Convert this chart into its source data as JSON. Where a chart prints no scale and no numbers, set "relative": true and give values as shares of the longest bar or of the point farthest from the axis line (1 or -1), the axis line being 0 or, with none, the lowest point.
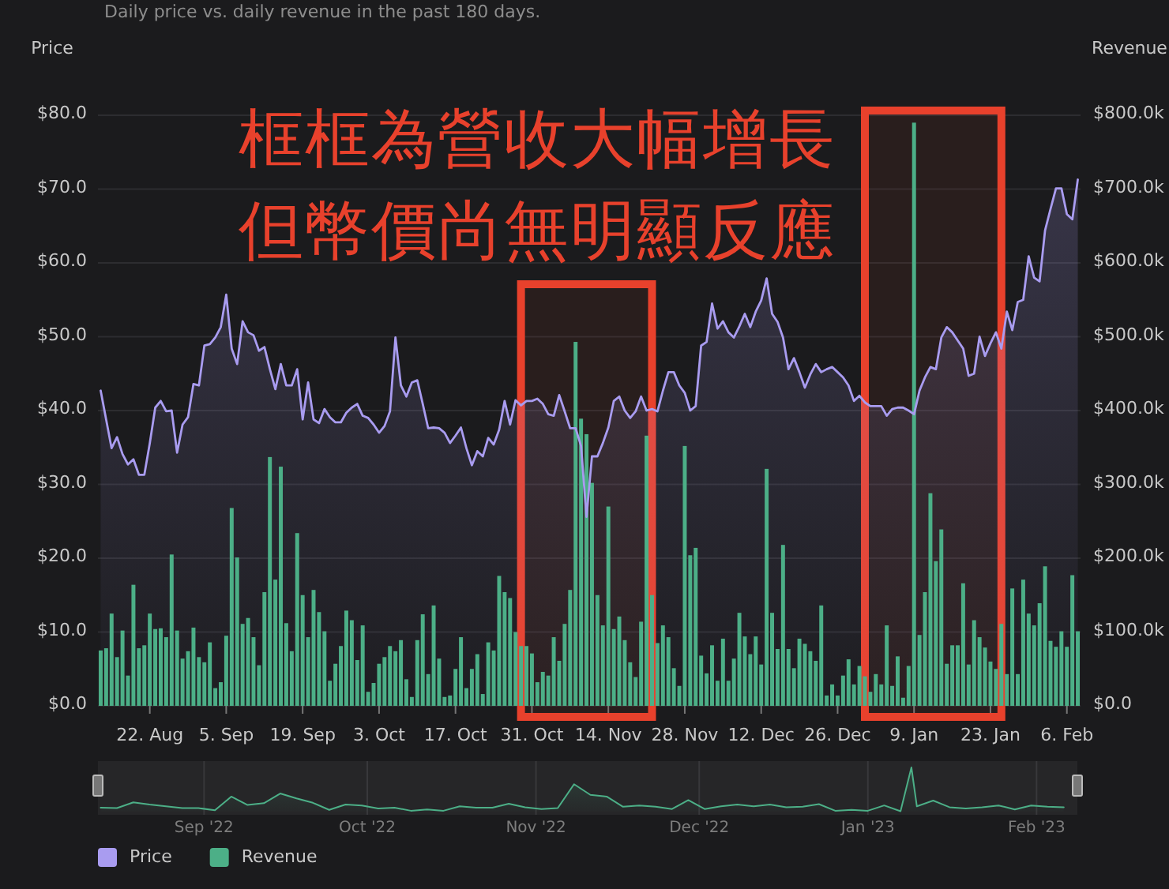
{
  "chart_data": [
    {
      "type": "bar",
      "title": "Daily price vs. daily revenue in the past 180 days.",
      "ylabel": "Price",
      "y2label": "Revenue",
      "x": [
        "2022-08-13",
        "2022-08-14",
        "2022-08-15",
        "2022-08-16",
        "2022-08-17",
        "2022-08-18",
        "2022-08-19",
        "2022-08-20",
        "2022-08-21",
        "2022-08-22",
        "2022-08-23",
        "2022-08-24",
        "2022-08-25",
        "2022-08-26",
        "2022-08-27",
        "2022-08-28",
        "2022-08-29",
        "2022-08-30",
        "2022-08-31",
        "2022-09-01",
        "2022-09-02",
        "2022-09-03",
        "2022-09-04",
        "2022-09-05",
        "2022-09-06",
        "2022-09-07",
        "2022-09-08",
        "2022-09-09",
        "2022-09-10",
        "2022-09-11",
        "2022-09-12",
        "2022-09-13",
        "2022-09-14",
        "2022-09-15",
        "2022-09-16",
        "2022-09-17",
        "2022-09-18",
        "2022-09-19",
        "2022-09-20",
        "2022-09-21",
        "2022-09-22",
        "2022-09-23",
        "2022-09-24",
        "2022-09-25",
        "2022-09-26",
        "2022-09-27",
        "2022-09-28",
        "2022-09-29",
        "2022-09-30",
        "2022-10-01",
        "2022-10-02",
        "2022-10-03",
        "2022-10-04",
        "2022-10-05",
        "2022-10-06",
        "2022-10-07",
        "2022-10-08",
        "2022-10-09",
        "2022-10-10",
        "2022-10-11",
        "2022-10-12",
        "2022-10-13",
        "2022-10-14",
        "2022-10-15",
        "2022-10-16",
        "2022-10-17",
        "2022-10-18",
        "2022-10-19",
        "2022-10-20",
        "2022-10-21",
        "2022-10-22",
        "2022-10-23",
        "2022-10-24",
        "2022-10-25",
        "2022-10-26",
        "2022-10-27",
        "2022-10-28",
        "2022-10-29",
        "2022-10-30",
        "2022-10-31",
        "2022-11-01",
        "2022-11-02",
        "2022-11-03",
        "2022-11-04",
        "2022-11-05",
        "2022-11-06",
        "2022-11-07",
        "2022-11-08",
        "2022-11-09",
        "2022-11-10",
        "2022-11-11",
        "2022-11-12",
        "2022-11-13",
        "2022-11-14",
        "2022-11-15",
        "2022-11-16",
        "2022-11-17",
        "2022-11-18",
        "2022-11-19",
        "2022-11-20",
        "2022-11-21",
        "2022-11-22",
        "2022-11-23",
        "2022-11-24",
        "2022-11-25",
        "2022-11-26",
        "2022-11-27",
        "2022-11-28",
        "2022-11-29",
        "2022-11-30",
        "2022-12-01",
        "2022-12-02",
        "2022-12-03",
        "2022-12-04",
        "2022-12-05",
        "2022-12-06",
        "2022-12-07",
        "2022-12-08",
        "2022-12-09",
        "2022-12-10",
        "2022-12-11",
        "2022-12-12",
        "2022-12-13",
        "2022-12-14",
        "2022-12-15",
        "2022-12-16",
        "2022-12-17",
        "2022-12-18",
        "2022-12-19",
        "2022-12-20",
        "2022-12-21",
        "2022-12-22",
        "2022-12-23",
        "2022-12-24",
        "2022-12-25",
        "2022-12-26",
        "2022-12-27",
        "2022-12-28",
        "2022-12-29",
        "2022-12-30",
        "2022-12-31",
        "2023-01-01",
        "2023-01-02",
        "2023-01-03",
        "2023-01-04",
        "2023-01-05",
        "2023-01-06",
        "2023-01-07",
        "2023-01-08",
        "2023-01-09",
        "2023-01-10",
        "2023-01-11",
        "2023-01-12",
        "2023-01-13",
        "2023-01-14",
        "2023-01-15",
        "2023-01-16",
        "2023-01-17",
        "2023-01-18",
        "2023-01-19",
        "2023-01-20",
        "2023-01-21",
        "2023-01-22",
        "2023-01-23",
        "2023-01-24",
        "2023-01-25",
        "2023-01-26",
        "2023-01-27",
        "2023-01-28",
        "2023-01-29",
        "2023-01-30",
        "2023-01-31",
        "2023-02-01",
        "2023-02-02",
        "2023-02-03",
        "2023-02-04",
        "2023-02-05",
        "2023-02-06",
        "2023-02-07",
        "2023-02-08"
      ],
      "series": [
        {
          "name": "Price",
          "type": "area",
          "axis": "y",
          "color": "#a99cf0",
          "values": [
            42.7,
            38.8,
            34.9,
            36.4,
            34.1,
            32.7,
            33.4,
            31.3,
            31.3,
            35.6,
            40.4,
            41.3,
            39.9,
            40.0,
            34.3,
            38.1,
            39.1,
            43.6,
            43.4,
            48.8,
            49.0,
            49.9,
            51.3,
            55.7,
            48.4,
            46.3,
            52.1,
            50.6,
            50.2,
            48.1,
            48.6,
            45.6,
            42.9,
            46.3,
            43.4,
            43.4,
            45.6,
            38.8,
            43.8,
            38.8,
            38.3,
            40.2,
            39.1,
            38.4,
            38.4,
            39.7,
            40.4,
            40.9,
            39.3,
            39.0,
            38.1,
            37.0,
            37.9,
            39.9,
            49.9,
            43.4,
            41.9,
            43.8,
            44.1,
            40.9,
            37.6,
            37.7,
            37.6,
            37.0,
            35.6,
            36.6,
            37.7,
            34.9,
            32.6,
            34.5,
            33.8,
            36.3,
            35.4,
            37.4,
            41.3,
            38.1,
            41.4,
            40.7,
            41.3,
            41.3,
            41.6,
            40.9,
            39.5,
            39.3,
            42.1,
            39.9,
            37.6,
            37.6,
            35.2,
            25.6,
            33.8,
            33.8,
            35.6,
            37.7,
            41.3,
            41.9,
            40.0,
            39.0,
            39.9,
            41.9,
            40.0,
            40.2,
            39.9,
            42.7,
            45.2,
            45.2,
            43.4,
            42.4,
            40.0,
            40.6,
            48.8,
            49.3,
            54.5,
            51.1,
            52.1,
            50.6,
            49.9,
            51.4,
            53.1,
            51.3,
            53.4,
            54.9,
            57.9,
            53.1,
            52.0,
            49.9,
            45.6,
            47.1,
            45.2,
            43.1,
            44.9,
            46.3,
            45.2,
            45.6,
            45.9,
            45.2,
            44.5,
            43.4,
            41.3,
            42.0,
            41.1,
            40.6,
            40.6,
            40.6,
            39.3,
            40.2,
            40.4,
            40.4,
            40.0,
            39.5,
            42.7,
            44.5,
            45.9,
            45.6,
            49.9,
            51.3,
            50.6,
            49.5,
            48.4,
            44.7,
            45.0,
            50.0,
            47.4,
            49.1,
            50.6,
            48.4,
            53.4,
            50.9,
            54.7,
            55.0,
            60.9,
            58.0,
            57.5,
            64.4,
            67.3,
            70.1,
            70.1,
            66.6,
            65.9,
            71.3
          ]
        },
        {
          "name": "Revenue",
          "type": "bar",
          "axis": "y2",
          "color": "#4caf87",
          "values": [
            75000,
            78000,
            125000,
            66000,
            102000,
            41000,
            164000,
            78000,
            82000,
            125000,
            104000,
            105000,
            93000,
            205000,
            102000,
            64000,
            74000,
            106000,
            66000,
            59000,
            86000,
            24000,
            32000,
            95000,
            268000,
            201000,
            111000,
            119000,
            93000,
            55000,
            154000,
            337000,
            171000,
            324000,
            112000,
            74000,
            234000,
            150000,
            93000,
            157000,
            127000,
            101000,
            34000,
            57000,
            81000,
            129000,
            116000,
            62000,
            109000,
            19000,
            31000,
            57000,
            66000,
            81000,
            74000,
            89000,
            36000,
            12000,
            89000,
            124000,
            43000,
            136000,
            64000,
            12000,
            14000,
            50000,
            93000,
            24000,
            50000,
            70000,
            16000,
            86000,
            75000,
            176000,
            154000,
            146000,
            100000,
            81000,
            81000,
            71000,
            32000,
            46000,
            41000,
            93000,
            61000,
            111000,
            157000,
            493000,
            389000,
            368000,
            302000,
            150000,
            109000,
            270000,
            104000,
            121000,
            89000,
            59000,
            39000,
            114000,
            366000,
            150000,
            85000,
            109000,
            93000,
            51000,
            27000,
            352000,
            204000,
            214000,
            68000,
            44000,
            82000,
            34000,
            91000,
            34000,
            64000,
            126000,
            94000,
            70000,
            94000,
            56000,
            321000,
            126000,
            77000,
            218000,
            77000,
            51000,
            91000,
            84000,
            74000,
            61000,
            136000,
            14000,
            29000,
            14000,
            41000,
            63000,
            29000,
            54000,
            40000,
            19000,
            43000,
            29000,
            109000,
            27000,
            67000,
            11000,
            54000,
            790000,
            96000,
            154000,
            288000,
            196000,
            239000,
            57000,
            82000,
            82000,
            166000,
            56000,
            116000,
            93000,
            79000,
            60000,
            50000,
            111000,
            43000,
            159000,
            43000,
            171000,
            125000,
            109000,
            139000,
            189000,
            88000,
            80000,
            101000,
            80000,
            177000,
            101000
          ]
        }
      ],
      "xlim": [
        "2022-08-12T12:00",
        "2023-02-08T12:00"
      ],
      "xticks": [
        {
          "value": "2022-08-22",
          "label": "22. Aug"
        },
        {
          "value": "2022-09-05",
          "label": "5. Sep"
        },
        {
          "value": "2022-09-19",
          "label": "19. Sep"
        },
        {
          "value": "2022-10-03",
          "label": "3. Oct"
        },
        {
          "value": "2022-10-17",
          "label": "17. Oct"
        },
        {
          "value": "2022-10-31",
          "label": "31. Oct"
        },
        {
          "value": "2022-11-14",
          "label": "14. Nov"
        },
        {
          "value": "2022-11-28",
          "label": "28. Nov"
        },
        {
          "value": "2022-12-12",
          "label": "12. Dec"
        },
        {
          "value": "2022-12-26",
          "label": "26. Dec"
        },
        {
          "value": "2023-01-09",
          "label": "9. Jan"
        },
        {
          "value": "2023-01-23",
          "label": "23. Jan"
        },
        {
          "value": "2023-02-06",
          "label": "6. Feb"
        }
      ],
      "ylim": [
        0,
        80
      ],
      "yticks": [
        {
          "value": 0,
          "label": "$0.0"
        },
        {
          "value": 10,
          "label": "$10.0"
        },
        {
          "value": 20,
          "label": "$20.0"
        },
        {
          "value": 30,
          "label": "$30.0"
        },
        {
          "value": 40,
          "label": "$40.0"
        },
        {
          "value": 50,
          "label": "$50.0"
        },
        {
          "value": 60,
          "label": "$60.0"
        },
        {
          "value": 70,
          "label": "$70.0"
        },
        {
          "value": 80,
          "label": "$80.0"
        }
      ],
      "y2lim": [
        0,
        800000
      ],
      "y2ticks": [
        {
          "value": 0,
          "label": "$0.0"
        },
        {
          "value": 100000,
          "label": "$100.0k"
        },
        {
          "value": 200000,
          "label": "$200.0k"
        },
        {
          "value": 300000,
          "label": "$300.0k"
        },
        {
          "value": 400000,
          "label": "$400.0k"
        },
        {
          "value": 500000,
          "label": "$500.0k"
        },
        {
          "value": 600000,
          "label": "$600.0k"
        },
        {
          "value": 700000,
          "label": "$700.0k"
        },
        {
          "value": 800000,
          "label": "$800.0k"
        }
      ],
      "grid": "y",
      "legend": "bottom",
      "bands": [
        {
          "axis": "x",
          "from": "2022-10-29",
          "to": "2022-11-22",
          "color": "#e8412c"
        },
        {
          "axis": "x",
          "from": "2022-12-31",
          "to": "2023-01-25",
          "color": "#e8412c"
        }
      ],
      "annotations": [
        "框框為營收大幅增長",
        "但幣價尚無明顯反應"
      ]
    },
    {
      "type": "area",
      "relative": true,
      "color": "#4caf87",
      "tick_labels": "x",
      "grid": "x",
      "x": [
        "2022-08-13",
        "2022-08-16",
        "2022-08-19",
        "2022-08-22",
        "2022-08-25",
        "2022-08-28",
        "2022-08-31",
        "2022-09-03",
        "2022-09-06",
        "2022-09-09",
        "2022-09-12",
        "2022-09-15",
        "2022-09-18",
        "2022-09-21",
        "2022-09-24",
        "2022-09-27",
        "2022-09-30",
        "2022-10-03",
        "2022-10-06",
        "2022-10-09",
        "2022-10-12",
        "2022-10-15",
        "2022-10-18",
        "2022-10-21",
        "2022-10-24",
        "2022-10-27",
        "2022-10-30",
        "2022-11-02",
        "2022-11-05",
        "2022-11-08",
        "2022-11-11",
        "2022-11-14",
        "2022-11-17",
        "2022-11-20",
        "2022-11-23",
        "2022-11-26",
        "2022-11-29",
        "2022-12-02",
        "2022-12-05",
        "2022-12-08",
        "2022-12-11",
        "2022-12-14",
        "2022-12-17",
        "2022-12-20",
        "2022-12-23",
        "2022-12-26",
        "2022-12-29",
        "2023-01-01",
        "2023-01-04",
        "2023-01-07",
        "2023-01-09",
        "2023-01-10",
        "2023-01-13",
        "2023-01-16",
        "2023-01-19",
        "2023-01-22",
        "2023-01-25",
        "2023-01-28",
        "2023-01-31",
        "2023-02-03",
        "2023-02-06"
      ],
      "values": [
        0.09,
        0.08,
        0.21,
        0.16,
        0.12,
        0.08,
        0.08,
        0.03,
        0.34,
        0.15,
        0.19,
        0.41,
        0.3,
        0.2,
        0.04,
        0.16,
        0.14,
        0.07,
        0.09,
        0.02,
        0.05,
        0.02,
        0.12,
        0.09,
        0.09,
        0.18,
        0.1,
        0.06,
        0.08,
        0.62,
        0.38,
        0.34,
        0.11,
        0.14,
        0.11,
        0.06,
        0.26,
        0.06,
        0.12,
        0.16,
        0.12,
        0.16,
        0.1,
        0.11,
        0.17,
        0.02,
        0.04,
        0.02,
        0.14,
        0.01,
        1.0,
        0.12,
        0.25,
        0.1,
        0.07,
        0.1,
        0.14,
        0.05,
        0.14,
        0.11,
        0.1
      ],
      "xlim": [
        "2022-08-12T12:00",
        "2023-02-08T12:00"
      ],
      "xticks": [
        {
          "value": "2022-09-01",
          "label": "Sep '22"
        },
        {
          "value": "2022-10-01",
          "label": "Oct '22"
        },
        {
          "value": "2022-11-01",
          "label": "Nov '22"
        },
        {
          "value": "2022-12-01",
          "label": "Dec '22"
        },
        {
          "value": "2023-01-01",
          "label": "Jan '23"
        },
        {
          "value": "2023-02-01",
          "label": "Feb '23"
        }
      ]
    }
  ]
}
